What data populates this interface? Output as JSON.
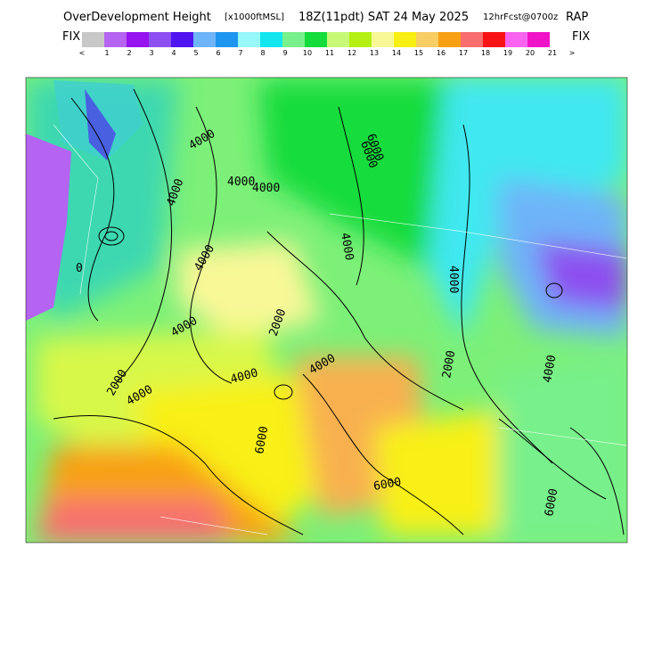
{
  "header": {
    "title": "OverDevelopment Height",
    "units": "[x1000ftMSL]",
    "valid": "18Z(11pdt) SAT 24 May 2025",
    "forecast": "12hrFcst@0700z",
    "model": "RAP"
  },
  "colorbar": {
    "left_label": "FIX",
    "right_label": "FIX",
    "low_arrow": "<",
    "high_arrow": ">",
    "colors": [
      "#c8c8c8",
      "#b464f0",
      "#9614f0",
      "#8c50f0",
      "#5014f0",
      "#6eb4f8",
      "#1e96f0",
      "#96f8f8",
      "#14e6f0",
      "#78f08c",
      "#14dc3c",
      "#c8f878",
      "#b4f014",
      "#f8f896",
      "#f8f014",
      "#f8cd64",
      "#f8a014",
      "#f86e6e",
      "#f81414",
      "#f864f0",
      "#f014c8"
    ],
    "ticks": [
      1,
      2,
      3,
      4,
      5,
      6,
      7,
      8,
      9,
      10,
      11,
      12,
      13,
      14,
      15,
      16,
      17,
      18,
      19,
      20,
      21
    ]
  },
  "map": {
    "contour_labels": [
      "4000",
      "4000",
      "4000",
      "6000",
      "4000",
      "2000",
      "4000",
      "4000",
      "2000",
      "4000",
      "4000",
      "4000",
      "2000",
      "4000",
      "4000",
      "6000",
      "6000",
      "6000",
      "6000",
      "0",
      "4000"
    ]
  }
}
